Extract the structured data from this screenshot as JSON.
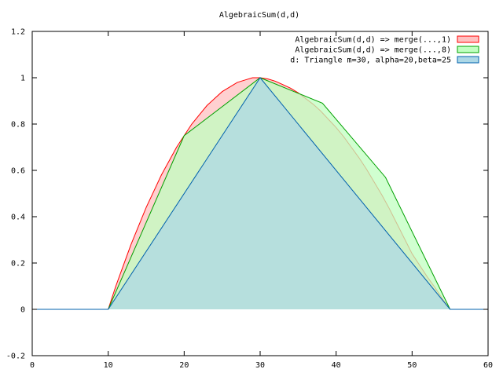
{
  "chart_data": {
    "type": "area",
    "title": "AlgebraicSum(d,d)",
    "xlabel": "",
    "ylabel": "",
    "xlim": [
      0,
      60
    ],
    "ylim": [
      -0.2,
      1.2
    ],
    "xticks": [
      0,
      10,
      20,
      30,
      40,
      50,
      60
    ],
    "yticks": [
      -0.2,
      0,
      0.2,
      0.4,
      0.6,
      0.8,
      1,
      1.2
    ],
    "ytick_labels": [
      "-0.2",
      "0",
      "0.2",
      "0.4",
      "0.6",
      "0.8",
      "1",
      "1.2"
    ],
    "grid": false,
    "legend_position": "top-right",
    "series": [
      {
        "name": "AlgebraicSum(d,d) => merge(...,1)",
        "fill": "#ffc0c0",
        "stroke": "#ff0000",
        "x": [
          10,
          11,
          12,
          13,
          14,
          15,
          16,
          17,
          18,
          19,
          20,
          21,
          22,
          23,
          24,
          25,
          26,
          27,
          28,
          29,
          30,
          31,
          32,
          33,
          34,
          35,
          36,
          37,
          38,
          39,
          40,
          41,
          42,
          43,
          44,
          45,
          46,
          47,
          48,
          49,
          50,
          51,
          52,
          53,
          54,
          55
        ],
        "y": [
          0,
          0.1,
          0.19,
          0.28,
          0.36,
          0.44,
          0.51,
          0.58,
          0.64,
          0.7,
          0.75,
          0.8,
          0.84,
          0.88,
          0.91,
          0.94,
          0.96,
          0.98,
          0.99,
          1.0,
          1.0,
          0.995,
          0.985,
          0.97,
          0.955,
          0.935,
          0.91,
          0.885,
          0.855,
          0.82,
          0.785,
          0.745,
          0.7,
          0.655,
          0.605,
          0.55,
          0.495,
          0.435,
          0.37,
          0.305,
          0.24,
          0.19,
          0.14,
          0.095,
          0.045,
          0
        ]
      },
      {
        "name": "AlgebraicSum(d,d) => merge(...,8)",
        "fill": "#c0ffc0",
        "stroke": "#00a000",
        "x": [
          10,
          20,
          30,
          38.2,
          46.5,
          55
        ],
        "y": [
          0,
          0.75,
          1.0,
          0.89,
          0.57,
          0
        ]
      },
      {
        "name": "d: Triangle m=30, alpha=20,beta=25",
        "fill": "#add8e6",
        "stroke": "#0060ad",
        "x": [
          0,
          10,
          30,
          55,
          60
        ],
        "y": [
          0,
          0,
          1,
          0,
          0
        ]
      }
    ]
  }
}
